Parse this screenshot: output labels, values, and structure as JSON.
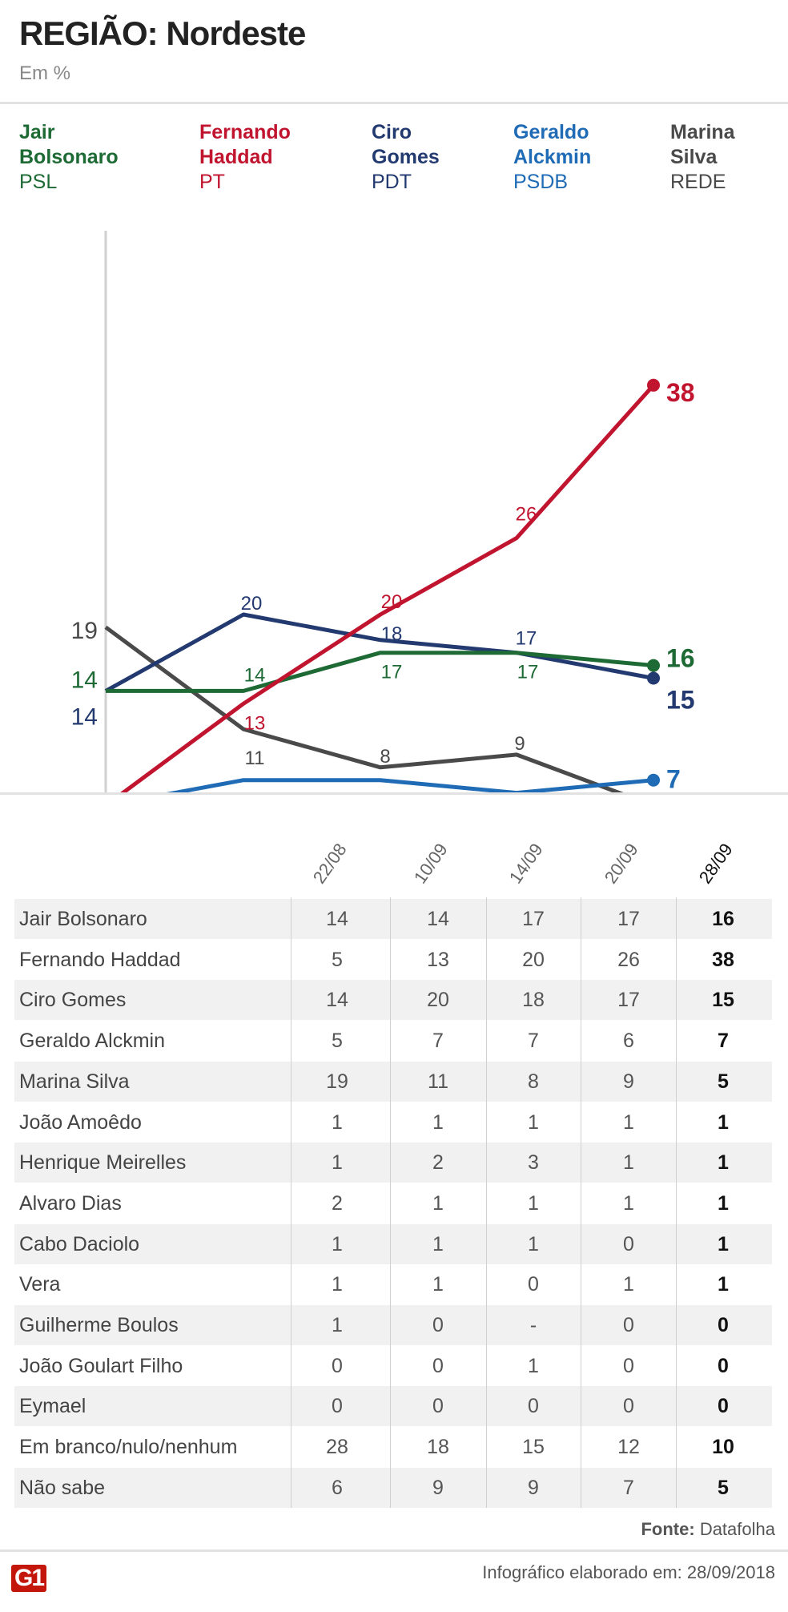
{
  "header": {
    "title": "REGIÃO: Nordeste",
    "subtitle": "Em %"
  },
  "legend": [
    {
      "name": "Jair Bolsonaro",
      "party": "PSL",
      "color": "#1e6a35"
    },
    {
      "name": "Fernando Haddad",
      "party": "PT",
      "color": "#c0142f"
    },
    {
      "name": "Ciro Gomes",
      "party": "PDT",
      "color": "#233a70"
    },
    {
      "name": "Geraldo Alckmin",
      "party": "PSDB",
      "color": "#1f6bb6"
    },
    {
      "name": "Marina Silva",
      "party": "REDE",
      "color": "#4a4a4a"
    }
  ],
  "chart_data": {
    "type": "line",
    "title": "REGIÃO: Nordeste",
    "ylabel": "Em %",
    "x": [
      "22/08",
      "10/09",
      "14/09",
      "20/09",
      "28/09"
    ],
    "ylim": [
      0,
      40
    ],
    "grid": false,
    "series": [
      {
        "name": "Jair Bolsonaro",
        "color": "#1e6a35",
        "values": [
          14,
          14,
          17,
          17,
          16
        ]
      },
      {
        "name": "Fernando Haddad",
        "color": "#c0142f",
        "values": [
          5,
          13,
          20,
          26,
          38
        ]
      },
      {
        "name": "Ciro Gomes",
        "color": "#233a70",
        "values": [
          14,
          20,
          18,
          17,
          15
        ]
      },
      {
        "name": "Geraldo Alckmin",
        "color": "#1f6bb6",
        "values": [
          5,
          7,
          7,
          6,
          7
        ]
      },
      {
        "name": "Marina Silva",
        "color": "#4a4a4a",
        "values": [
          19,
          11,
          8,
          9,
          5
        ]
      }
    ]
  },
  "table": {
    "columns": [
      "22/08",
      "10/09",
      "14/09",
      "20/09",
      "28/09"
    ],
    "rows": [
      {
        "name": "Jair Bolsonaro",
        "values": [
          "14",
          "14",
          "17",
          "17",
          "16"
        ]
      },
      {
        "name": "Fernando Haddad",
        "values": [
          "5",
          "13",
          "20",
          "26",
          "38"
        ]
      },
      {
        "name": "Ciro Gomes",
        "values": [
          "14",
          "20",
          "18",
          "17",
          "15"
        ]
      },
      {
        "name": "Geraldo Alckmin",
        "values": [
          "5",
          "7",
          "7",
          "6",
          "7"
        ]
      },
      {
        "name": "Marina Silva",
        "values": [
          "19",
          "11",
          "8",
          "9",
          "5"
        ]
      },
      {
        "name": "João Amoêdo",
        "values": [
          "1",
          "1",
          "1",
          "1",
          "1"
        ]
      },
      {
        "name": "Henrique Meirelles",
        "values": [
          "1",
          "2",
          "3",
          "1",
          "1"
        ]
      },
      {
        "name": "Alvaro Dias",
        "values": [
          "2",
          "1",
          "1",
          "1",
          "1"
        ]
      },
      {
        "name": "Cabo Daciolo",
        "values": [
          "1",
          "1",
          "1",
          "0",
          "1"
        ]
      },
      {
        "name": "Vera",
        "values": [
          "1",
          "1",
          "0",
          "1",
          "1"
        ]
      },
      {
        "name": "Guilherme Boulos",
        "values": [
          "1",
          "0",
          "-",
          "0",
          "0"
        ]
      },
      {
        "name": "João Goulart Filho",
        "values": [
          "0",
          "0",
          "1",
          "0",
          "0"
        ]
      },
      {
        "name": "Eymael",
        "values": [
          "0",
          "0",
          "0",
          "0",
          "0"
        ]
      },
      {
        "name": "Em branco/nulo/nenhum",
        "values": [
          "28",
          "18",
          "15",
          "12",
          "10"
        ]
      },
      {
        "name": "Não sabe",
        "values": [
          "6",
          "9",
          "9",
          "7",
          "5"
        ]
      }
    ]
  },
  "footer": {
    "source_label": "Fonte:",
    "source": "Datafolha",
    "credit": "Infográfico elaborado em: 28/09/2018",
    "logo": "G1"
  }
}
